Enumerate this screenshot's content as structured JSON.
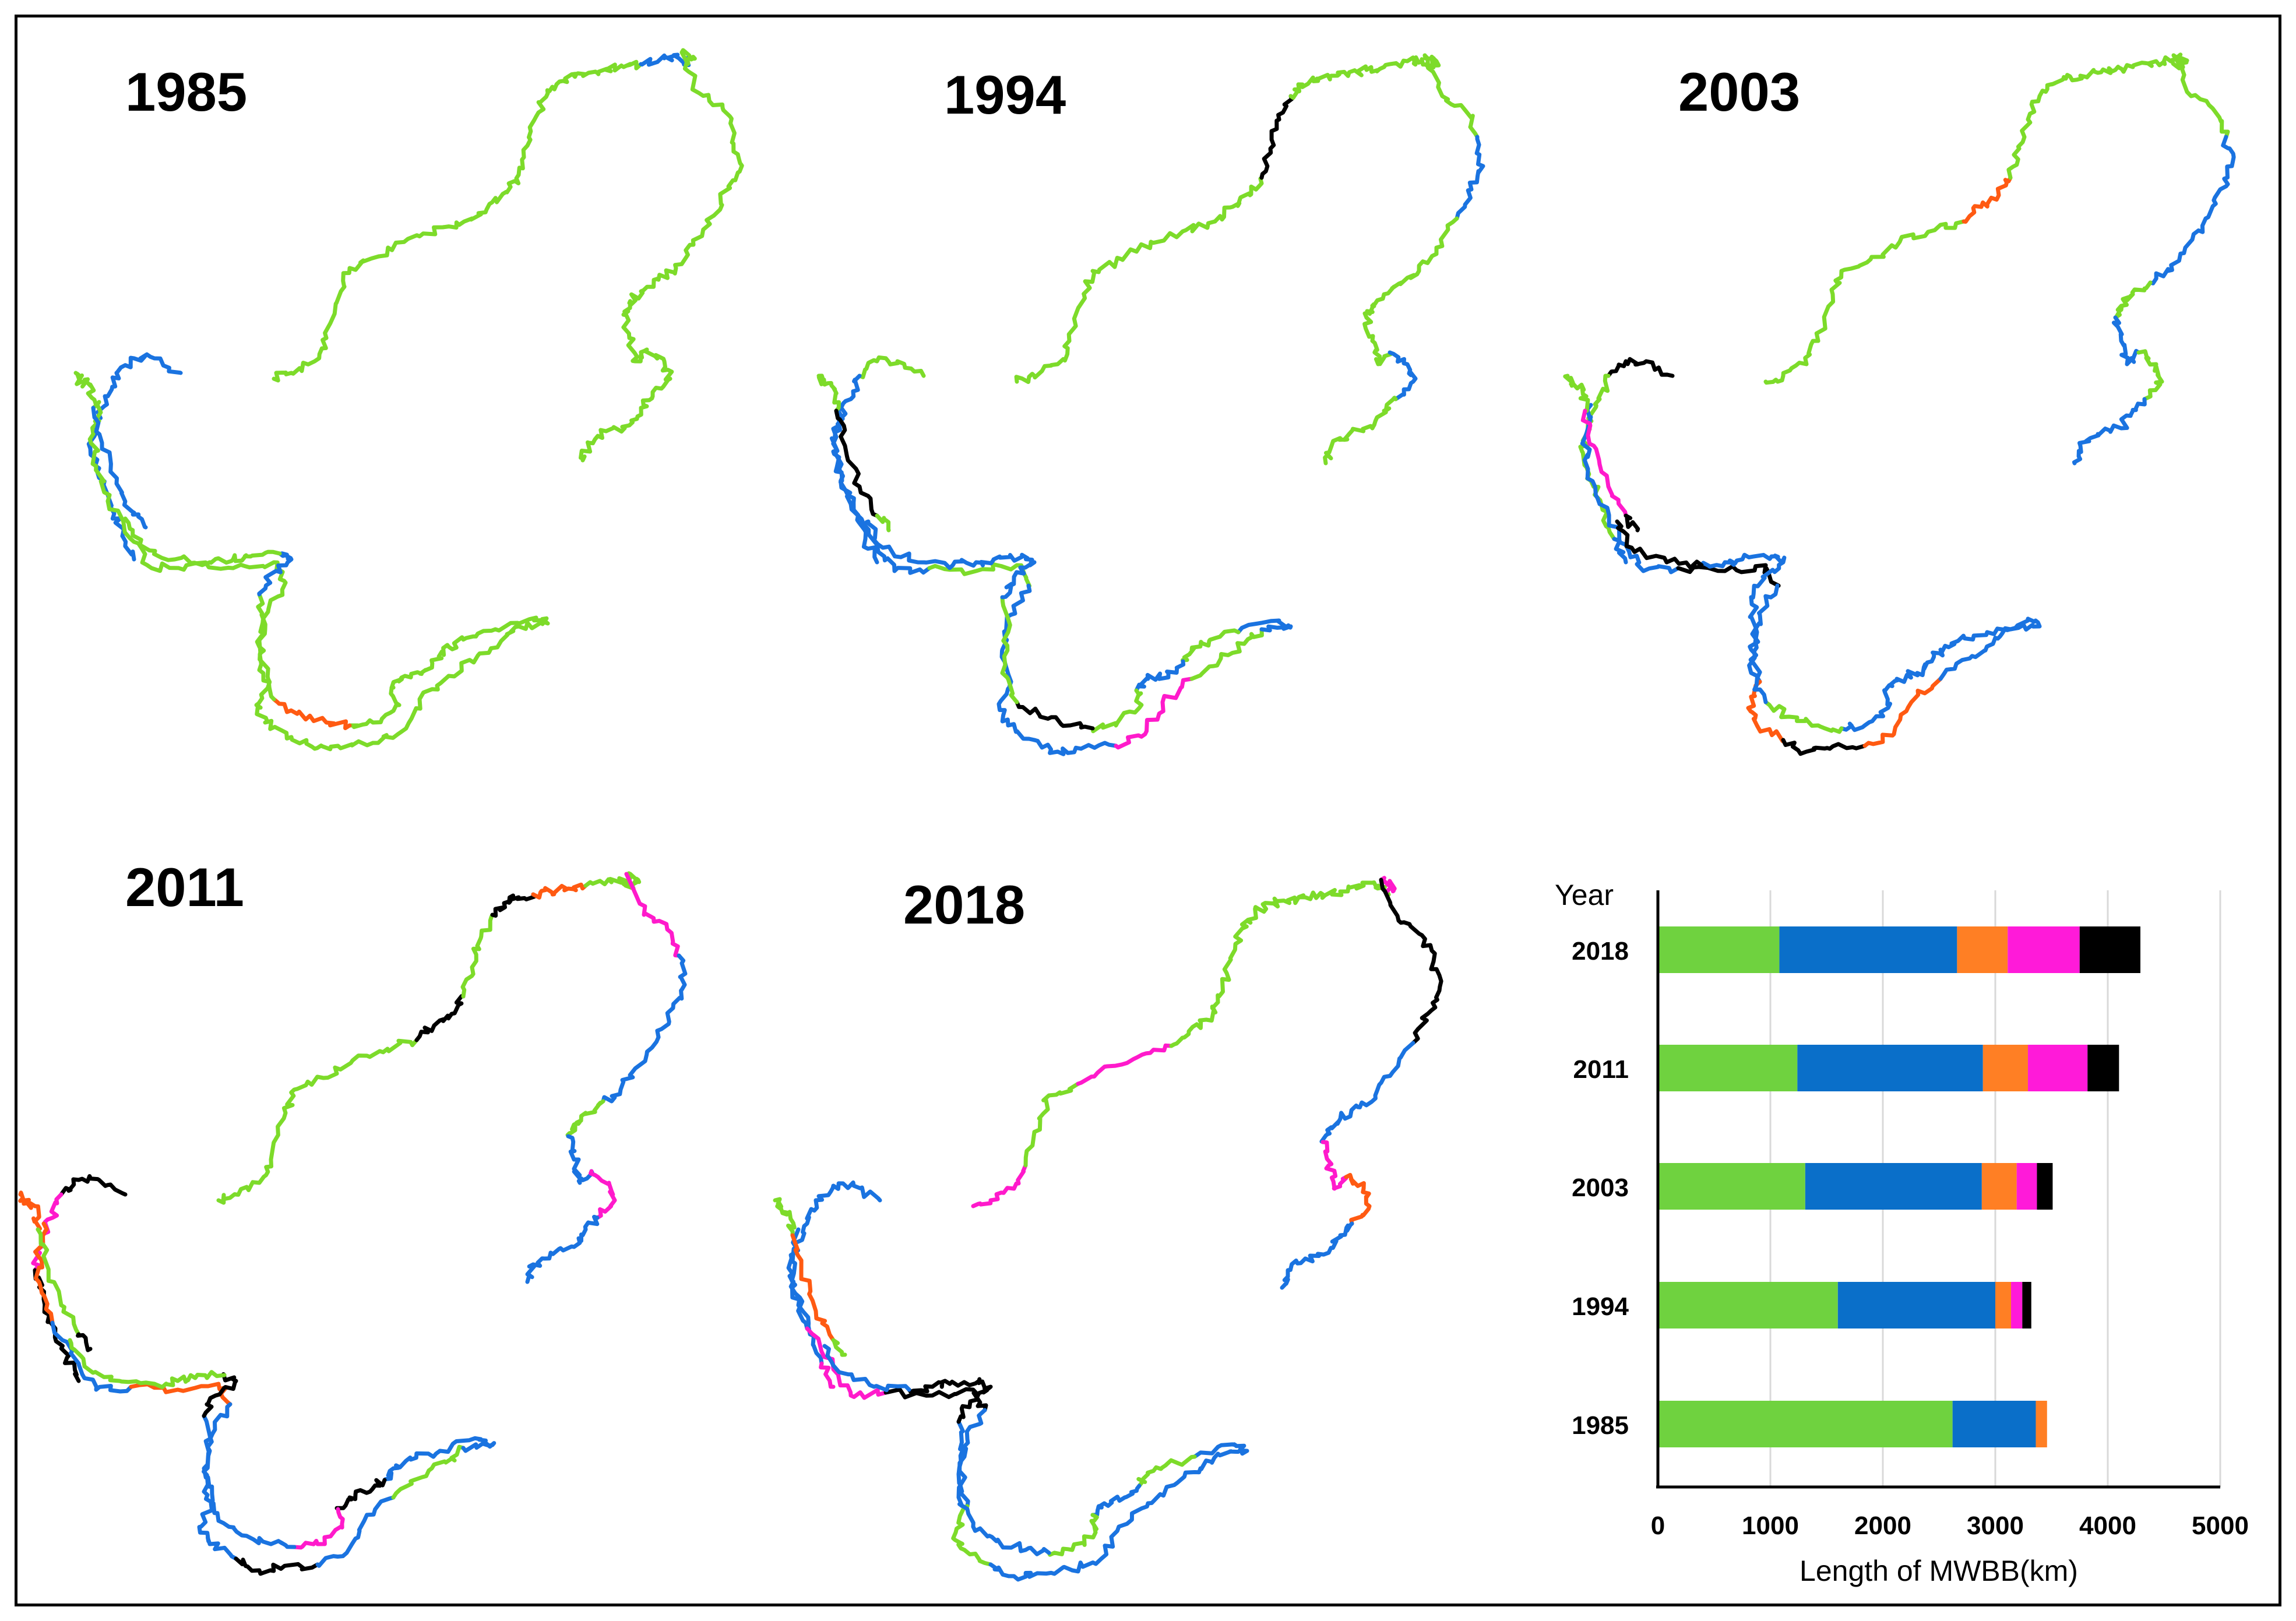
{
  "panels": [
    {
      "year": "1985",
      "seed": 1
    },
    {
      "year": "1994",
      "seed": 2
    },
    {
      "year": "2003",
      "seed": 3
    },
    {
      "year": "2011",
      "seed": 4
    },
    {
      "year": "2018",
      "seed": 5
    }
  ],
  "colors": {
    "green": "#6FD23F",
    "blue": "#0A6FC9",
    "orange": "#FF7F24",
    "magenta": "#FF1AD9",
    "black": "#000000",
    "grid": "#d9d9d9",
    "map_green": "#7DDB2A",
    "map_blue": "#1A73E0",
    "map_orange": "#FF5A12",
    "map_magenta": "#FF1ACB"
  },
  "chart_data": {
    "type": "bar",
    "orientation": "horizontal",
    "stacked": true,
    "categories": [
      "2018",
      "2011",
      "2003",
      "1994",
      "1985"
    ],
    "series": [
      {
        "color": "green",
        "values": [
          1080,
          1240,
          1310,
          1600,
          2620
        ]
      },
      {
        "color": "blue",
        "values": [
          1580,
          1650,
          1570,
          1400,
          740
        ]
      },
      {
        "color": "orange",
        "values": [
          450,
          400,
          310,
          140,
          100
        ]
      },
      {
        "color": "magenta",
        "values": [
          640,
          530,
          180,
          100,
          0
        ]
      },
      {
        "color": "black",
        "values": [
          540,
          280,
          140,
          80,
          0
        ]
      }
    ],
    "xlim": [
      0,
      5000
    ],
    "xticks": [
      "0",
      "1000",
      "2000",
      "3000",
      "4000",
      "5000"
    ],
    "xlabel": "Length of MWBB(km)",
    "ylabel": "Year",
    "grid": true
  }
}
